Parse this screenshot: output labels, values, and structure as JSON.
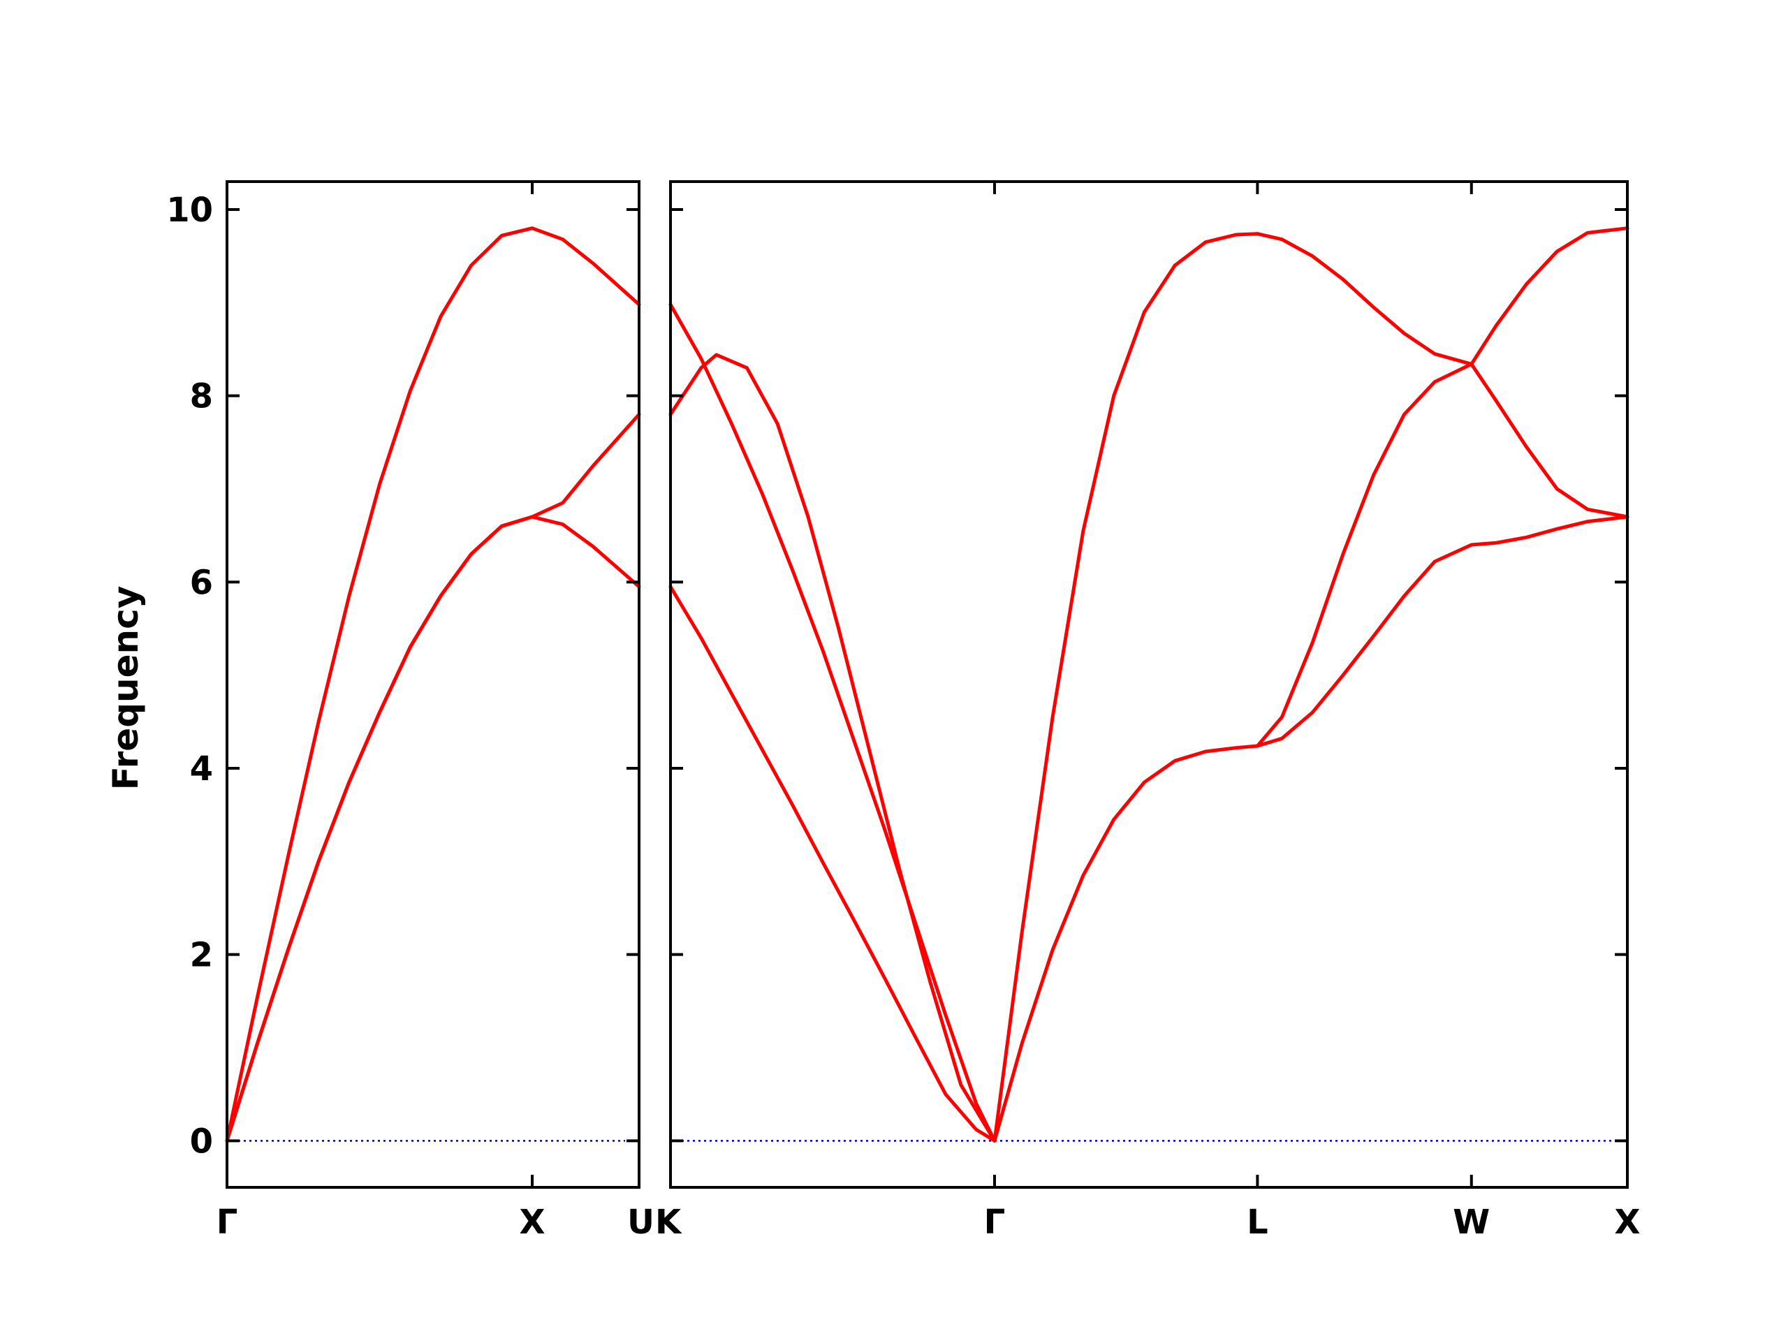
{
  "chart_data": {
    "type": "line",
    "title": "",
    "ylabel": "Frequency",
    "xlabel": "",
    "ylim": [
      -0.5,
      10.3
    ],
    "yticks": [
      0,
      2,
      4,
      6,
      8,
      10
    ],
    "grid": false,
    "legend": "none",
    "colors": {
      "band": "#ff0000",
      "zero_line": "#0000aa",
      "frame": "#000000"
    },
    "panels": [
      {
        "id": "left",
        "xlim": [
          0,
          1.35
        ],
        "ticks": [
          {
            "x": 0,
            "label": "Γ"
          },
          {
            "x": 1.0,
            "label": "X"
          },
          {
            "x": 1.35,
            "label": "U"
          }
        ],
        "series": [
          {
            "x": [
              0,
              0.1,
              0.2,
              0.3,
              0.4,
              0.5,
              0.6,
              0.7,
              0.8,
              0.9,
              1.0,
              1.1,
              1.2,
              1.35
            ],
            "y": [
              0,
              1.55,
              3.05,
              4.5,
              5.85,
              7.05,
              8.05,
              8.85,
              9.4,
              9.72,
              9.8,
              9.68,
              9.42,
              8.98
            ]
          },
          {
            "x": [
              0,
              0.1,
              0.2,
              0.3,
              0.4,
              0.5,
              0.6,
              0.7,
              0.8,
              0.9,
              1.0,
              1.1,
              1.2,
              1.35
            ],
            "y": [
              0,
              1.05,
              2.05,
              3.0,
              3.85,
              4.6,
              5.3,
              5.85,
              6.3,
              6.6,
              6.7,
              6.62,
              6.38,
              5.95
            ]
          },
          {
            "x": [
              0,
              0.1,
              0.2,
              0.3,
              0.4,
              0.5,
              0.6,
              0.7,
              0.8,
              0.9,
              1.0,
              1.1,
              1.2,
              1.35
            ],
            "y": [
              0,
              1.05,
              2.05,
              3.0,
              3.85,
              4.6,
              5.3,
              5.85,
              6.3,
              6.6,
              6.7,
              6.85,
              7.25,
              7.8
            ]
          }
        ]
      },
      {
        "id": "right",
        "xlim": [
          0,
          3.13
        ],
        "ticks": [
          {
            "x": 0,
            "label": "K"
          },
          {
            "x": 1.06,
            "label": "Γ"
          },
          {
            "x": 1.92,
            "label": "L"
          },
          {
            "x": 2.62,
            "label": "W"
          },
          {
            "x": 3.13,
            "label": "X"
          }
        ],
        "series": [
          {
            "x": [
              0,
              0.1,
              0.2,
              0.3,
              0.4,
              0.5,
              0.6,
              0.7,
              0.8,
              0.9,
              1.0,
              1.06
            ],
            "y": [
              5.95,
              5.4,
              4.8,
              4.2,
              3.6,
              2.98,
              2.37,
              1.75,
              1.12,
              0.5,
              0.12,
              0
            ]
          },
          {
            "x": [
              0,
              0.1,
              0.2,
              0.3,
              0.4,
              0.5,
              0.6,
              0.7,
              0.8,
              0.9,
              1.0,
              1.06
            ],
            "y": [
              8.98,
              8.4,
              7.7,
              6.95,
              6.12,
              5.25,
              4.3,
              3.35,
              2.35,
              1.35,
              0.4,
              0
            ]
          },
          {
            "x": [
              0,
              0.1,
              0.15,
              0.25,
              0.35,
              0.45,
              0.55,
              0.65,
              0.75,
              0.85,
              0.95,
              1.06
            ],
            "y": [
              7.8,
              8.3,
              8.44,
              8.3,
              7.7,
              6.7,
              5.5,
              4.2,
              2.9,
              1.7,
              0.6,
              0
            ]
          },
          {
            "x": [
              1.06,
              1.15,
              1.25,
              1.35,
              1.45,
              1.55,
              1.65,
              1.75,
              1.85,
              1.92
            ],
            "y": [
              0,
              1.05,
              2.05,
              2.85,
              3.45,
              3.85,
              4.08,
              4.18,
              4.22,
              4.24
            ]
          },
          {
            "x": [
              1.06,
              1.15,
              1.25,
              1.35,
              1.45,
              1.55,
              1.65,
              1.75,
              1.85,
              1.92
            ],
            "y": [
              0,
              2.25,
              4.55,
              6.55,
              8.0,
              8.9,
              9.4,
              9.65,
              9.73,
              9.74
            ]
          },
          {
            "x": [
              1.92,
              2.0,
              2.1,
              2.2,
              2.3,
              2.4,
              2.5,
              2.62,
              2.7,
              2.8,
              2.9,
              3.0,
              3.13
            ],
            "y": [
              9.74,
              9.68,
              9.5,
              9.25,
              8.95,
              8.67,
              8.45,
              8.34,
              7.95,
              7.45,
              7.0,
              6.78,
              6.7
            ]
          },
          {
            "x": [
              1.92,
              2.0,
              2.1,
              2.2,
              2.3,
              2.4,
              2.5,
              2.62,
              2.7,
              2.8,
              2.9,
              3.0,
              3.13
            ],
            "y": [
              4.24,
              4.55,
              5.35,
              6.3,
              7.15,
              7.8,
              8.15,
              8.34,
              8.75,
              9.2,
              9.55,
              9.75,
              9.8
            ]
          },
          {
            "x": [
              1.92,
              2.0,
              2.1,
              2.2,
              2.3,
              2.4,
              2.5,
              2.62,
              2.7,
              2.8,
              2.9,
              3.0,
              3.13
            ],
            "y": [
              4.24,
              4.32,
              4.6,
              5.0,
              5.42,
              5.85,
              6.22,
              6.4,
              6.42,
              6.48,
              6.57,
              6.65,
              6.7
            ]
          }
        ]
      }
    ]
  }
}
